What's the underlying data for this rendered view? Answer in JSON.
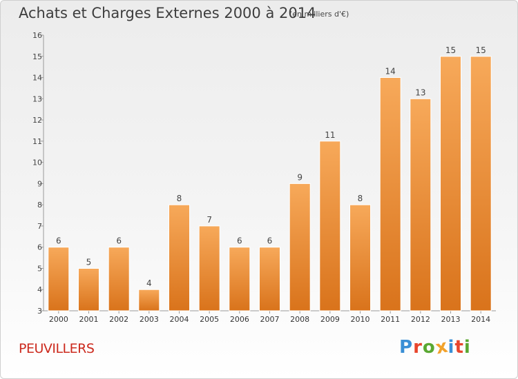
{
  "header": {
    "title": "Achats et Charges Externes 2000 à 2014",
    "subtitle": "(en milliers d'€)"
  },
  "footer": {
    "town": "PEUVILLERS",
    "logo": "Proxiti"
  },
  "colors": {
    "bar_light": "#f7a95a",
    "bar_dark": "#d9731b",
    "town": "#cc2a1e",
    "logo_letters": [
      "#3a8fd6",
      "#e8452c",
      "#5aa832",
      "#f2a22b",
      "#3a8fd6",
      "#e8452c",
      "#5aa832"
    ]
  },
  "chart_data": {
    "type": "bar",
    "categories": [
      "2000",
      "2001",
      "2002",
      "2003",
      "2004",
      "2005",
      "2006",
      "2007",
      "2008",
      "2009",
      "2010",
      "2011",
      "2012",
      "2013",
      "2014"
    ],
    "values": [
      6,
      5,
      6,
      4,
      8,
      7,
      6,
      6,
      9,
      11,
      8,
      14,
      13,
      15,
      15
    ],
    "title": "Achats et Charges Externes 2000 à 2014",
    "subtitle": "(en milliers d'€)",
    "xlabel": "",
    "ylabel": "",
    "ylim": [
      3,
      16
    ],
    "yticks": [
      3,
      4,
      5,
      6,
      7,
      8,
      9,
      10,
      11,
      12,
      13,
      14,
      15,
      16
    ],
    "grid": false,
    "legend": "none",
    "data_labels": true
  }
}
